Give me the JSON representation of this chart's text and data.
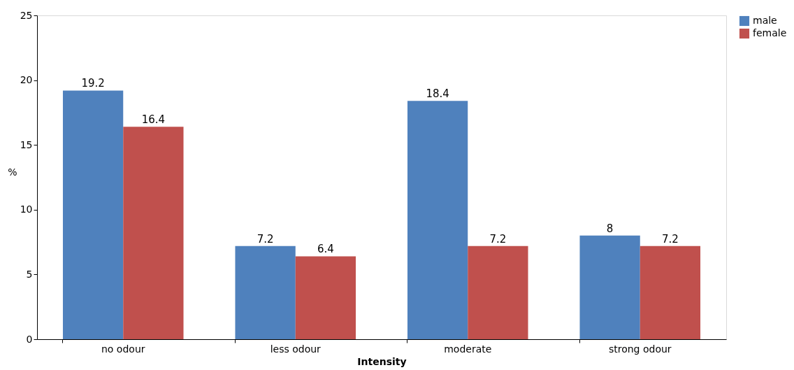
{
  "chart_data": {
    "type": "bar",
    "xlabel": "Intensity",
    "ylabel": "%",
    "categories": [
      "no odour",
      "less odour",
      "moderate",
      "strong odour"
    ],
    "series": [
      {
        "name": "male",
        "color": "#4f81bd",
        "values": [
          19.2,
          7.2,
          18.4,
          8
        ]
      },
      {
        "name": "female",
        "color": "#c0504d",
        "values": [
          16.4,
          6.4,
          7.2,
          7.2
        ]
      }
    ],
    "ylim": [
      0,
      25
    ],
    "yticks": [
      0,
      5,
      10,
      15,
      20,
      25
    ],
    "grid": false,
    "legend": "right",
    "data_labels": true
  }
}
